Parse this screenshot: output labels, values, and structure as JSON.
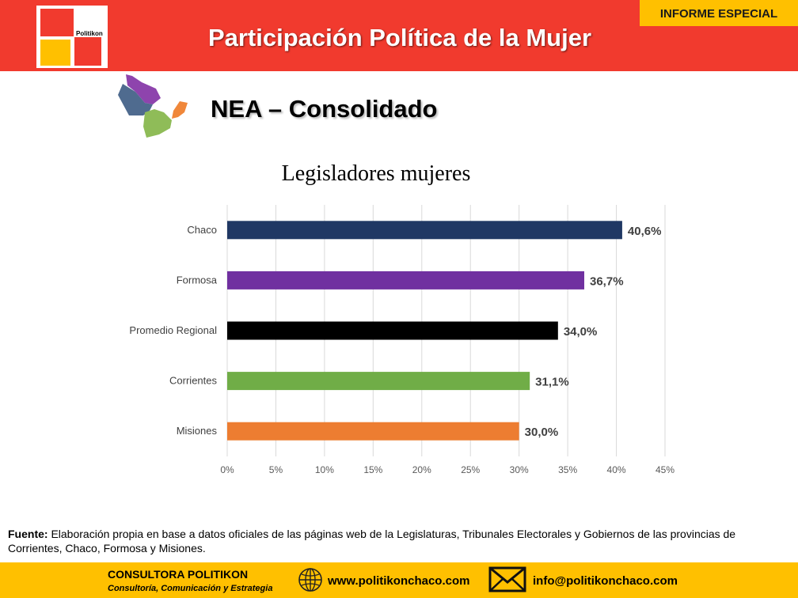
{
  "header": {
    "logo_text": "Politikon",
    "title": "Participación Política de la Mujer",
    "badge": "INFORME ESPECIAL"
  },
  "section": {
    "title": "NEA – Consolidado"
  },
  "chart_data": {
    "type": "bar",
    "orientation": "horizontal",
    "title": "Legisladores mujeres",
    "categories": [
      "Chaco",
      "Formosa",
      "Promedio Regional",
      "Corrientes",
      "Misiones"
    ],
    "values": [
      40.6,
      36.7,
      34.0,
      31.1,
      30.0
    ],
    "value_labels": [
      "40,6%",
      "36,7%",
      "34,0%",
      "31,1%",
      "30,0%"
    ],
    "colors": [
      "#203864",
      "#7030a0",
      "#000000",
      "#70ad47",
      "#ed7d31"
    ],
    "xlim": [
      0,
      45
    ],
    "xticks": [
      0,
      5,
      10,
      15,
      20,
      25,
      30,
      35,
      40,
      45
    ],
    "xtick_labels": [
      "0%",
      "5%",
      "10%",
      "15%",
      "20%",
      "25%",
      "30%",
      "35%",
      "40%",
      "45%"
    ],
    "grid": true,
    "xlabel": "",
    "ylabel": ""
  },
  "source": {
    "label": "Fuente:",
    "text": " Elaboración propia en base a datos oficiales de las páginas web de la Legislaturas, Tribunales Electorales y Gobiernos de las provincias de Corrientes, Chaco, Formosa y Misiones."
  },
  "footer": {
    "company": "CONSULTORA POLITIKON",
    "tagline": "Consultoría, Comunicación y Estrategia",
    "website": "www.politikonchaco.com",
    "email": "info@politikonchaco.com"
  },
  "colors": {
    "header_bg": "#f13a2e",
    "accent_yellow": "#ffc000"
  }
}
